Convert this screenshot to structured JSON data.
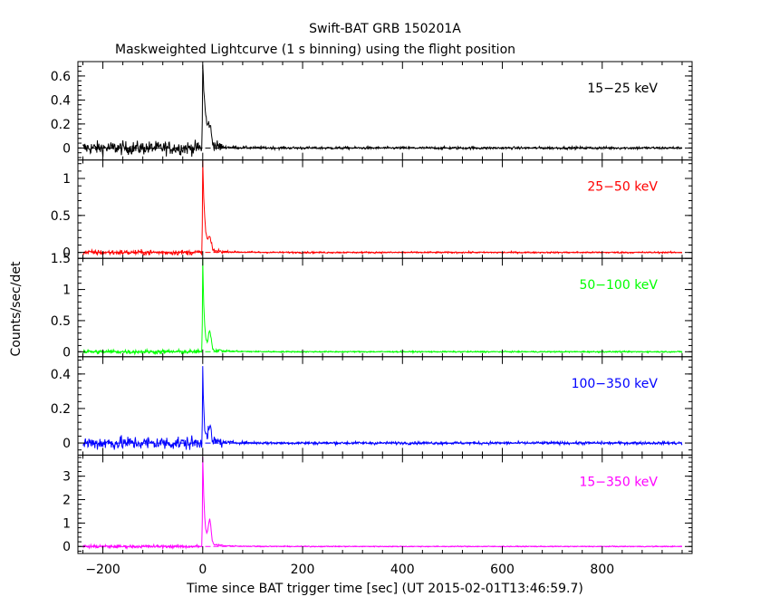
{
  "chart_data": {
    "type": "line",
    "title": "Swift-BAT GRB 150201A",
    "subtitle": "Maskweighted Lightcurve (1 s binning) using the flight position",
    "xlabel": "Time since BAT trigger time [sec] (UT 2015-02-01T13:46:59.7)",
    "ylabel": "Counts/sec/det",
    "xlim": [
      -250,
      980
    ],
    "x_ticks": [
      -200,
      0,
      200,
      400,
      600,
      800
    ],
    "x_tick_labels": [
      "−200",
      "0",
      "200",
      "400",
      "600",
      "800"
    ],
    "data_x_range": [
      -240,
      960
    ],
    "panels": [
      {
        "series_name": "15−25 keV",
        "color": "#000000",
        "ylim": [
          -0.1,
          0.72
        ],
        "y_ticks": [
          0,
          0.2,
          0.4,
          0.6
        ],
        "y_tick_labels": [
          "0",
          "0.2",
          "0.4",
          "0.6"
        ],
        "pre_noise": 0.04,
        "post_noise": 0.008,
        "peak": 0.68,
        "peak_time": 0,
        "decay": 6.0,
        "bump": 0.12
      },
      {
        "series_name": "25−50 keV",
        "color": "#ff0000",
        "ylim": [
          -0.08,
          1.25
        ],
        "y_ticks": [
          0,
          0.5,
          1
        ],
        "y_tick_labels": [
          "0",
          "0.5",
          "1"
        ],
        "pre_noise": 0.025,
        "post_noise": 0.008,
        "peak": 1.18,
        "peak_time": 0,
        "decay": 4.0,
        "bump": 0.15
      },
      {
        "series_name": "50−100 keV",
        "color": "#00ff00",
        "ylim": [
          -0.08,
          1.5
        ],
        "y_ticks": [
          0,
          0.5,
          1,
          1.5
        ],
        "y_tick_labels": [
          "0",
          "0.5",
          "1",
          "1.5"
        ],
        "pre_noise": 0.025,
        "post_noise": 0.008,
        "peak": 1.45,
        "peak_time": 0,
        "decay": 3.0,
        "bump": 0.3
      },
      {
        "series_name": "100−350 keV",
        "color": "#0000ff",
        "ylim": [
          -0.07,
          0.5
        ],
        "y_ticks": [
          0,
          0.2,
          0.4
        ],
        "y_tick_labels": [
          "0",
          "0.2",
          "0.4"
        ],
        "pre_noise": 0.028,
        "post_noise": 0.006,
        "peak": 0.44,
        "peak_time": 0,
        "decay": 2.5,
        "bump": 0.08
      },
      {
        "series_name": "15−350 keV",
        "color": "#ff00ff",
        "ylim": [
          -0.3,
          3.9
        ],
        "y_ticks": [
          0,
          1,
          2,
          3
        ],
        "y_tick_labels": [
          "0",
          "1",
          "2",
          "3"
        ],
        "pre_noise": 0.05,
        "post_noise": 0.015,
        "peak": 3.7,
        "peak_time": 0,
        "decay": 3.5,
        "bump": 1.0
      }
    ]
  }
}
